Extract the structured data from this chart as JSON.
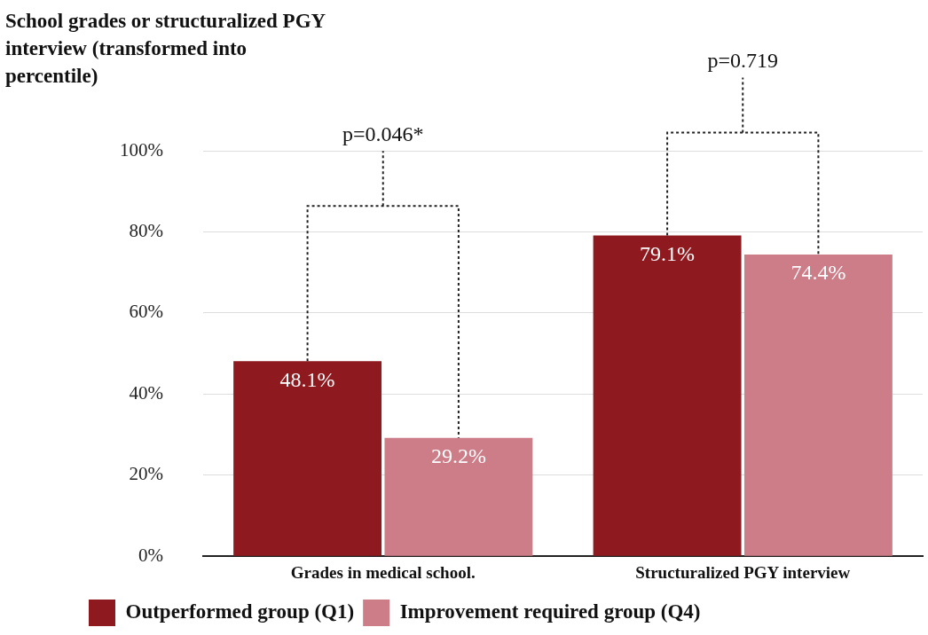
{
  "chart_data": {
    "type": "bar",
    "title": "School grades or structuralized PGY interview (transformed into percentile)",
    "categories": [
      "Grades in medical school.",
      "Structuralized PGY interview"
    ],
    "series": [
      {
        "name": "Outperformed group (Q1)",
        "color": "#8e1a1f",
        "values": [
          48.1,
          79.1
        ],
        "value_labels": [
          "48.1%",
          "79.1%"
        ]
      },
      {
        "name": "Improvement required group (Q4)",
        "color": "#cc7d88",
        "values": [
          29.2,
          74.4
        ],
        "value_labels": [
          "29.2%",
          "74.4%"
        ]
      }
    ],
    "ylim": [
      0,
      100
    ],
    "yticks": [
      {
        "value": 0,
        "label": "0%"
      },
      {
        "value": 20,
        "label": "20%"
      },
      {
        "value": 40,
        "label": "40%"
      },
      {
        "value": 60,
        "label": "60%"
      },
      {
        "value": 80,
        "label": "80%"
      },
      {
        "value": 100,
        "label": "100%"
      }
    ],
    "annotations": [
      "p=0.046*",
      "p=0.719"
    ],
    "grid": "y",
    "legend": "bottom left"
  }
}
